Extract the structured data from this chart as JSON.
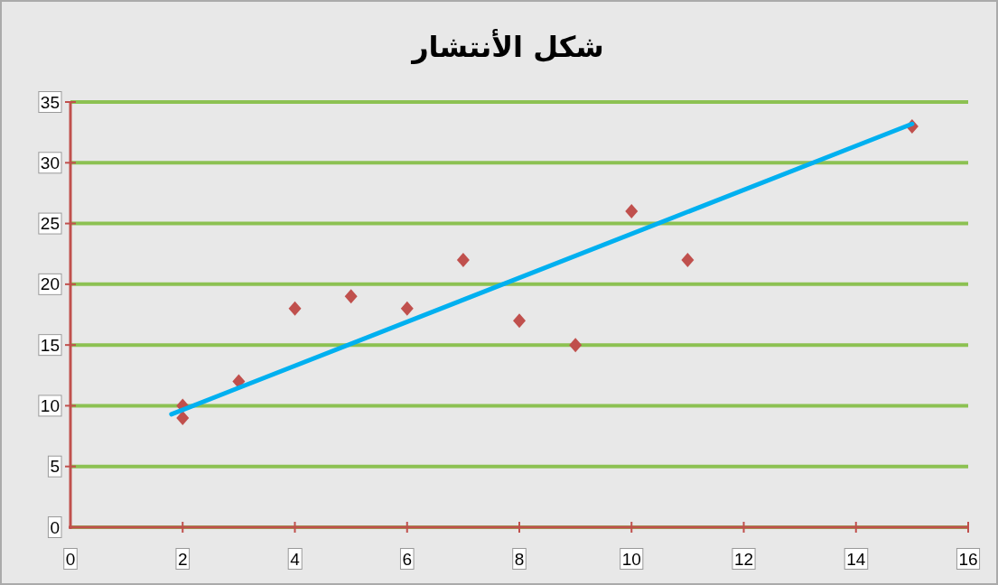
{
  "chart_data": {
    "type": "scatter",
    "title": "شكل الأنتشار",
    "series": [
      {
        "type": "scatter",
        "color": "#c0504d",
        "marker": "diamond",
        "x": [
          2,
          2,
          3,
          4,
          5,
          6,
          7,
          8,
          9,
          10,
          11,
          15
        ],
        "values": [
          10,
          9,
          12,
          18,
          19,
          18,
          22,
          17,
          15,
          26,
          22,
          33
        ]
      },
      {
        "type": "line",
        "color": "#00b0f0",
        "marker": "none",
        "x": [
          1.8,
          15
        ],
        "values": [
          9.3,
          33.2
        ]
      }
    ],
    "xlim": [
      0,
      16
    ],
    "xticks": [
      0,
      2,
      4,
      6,
      8,
      10,
      12,
      14,
      16
    ],
    "ylim": [
      0,
      35
    ],
    "yticks": [
      0,
      5,
      10,
      15,
      20,
      25,
      30,
      35
    ],
    "grid": "y"
  }
}
